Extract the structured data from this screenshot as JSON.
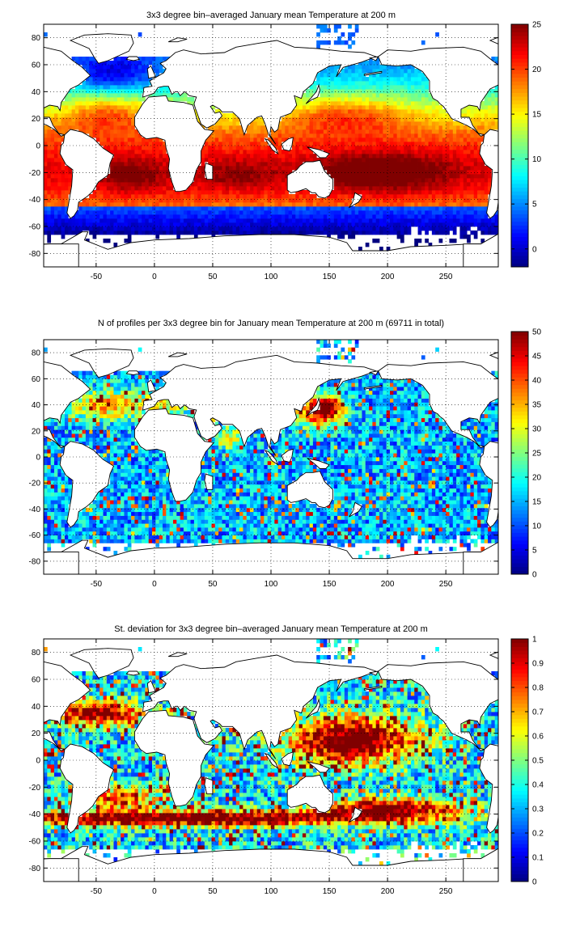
{
  "chart_data": [
    {
      "type": "heatmap",
      "title": "3x3 degree bin–averaged January mean Temperature at 200 m",
      "x_ticks": [
        -50,
        0,
        50,
        100,
        150,
        200,
        250
      ],
      "y_ticks": [
        -80,
        -60,
        -40,
        -20,
        0,
        20,
        40,
        60,
        80
      ],
      "xlim": [
        -95,
        295
      ],
      "ylim": [
        -90,
        90
      ],
      "grid": true,
      "colorbar": {
        "min": -2,
        "max": 25,
        "ticks": [
          0,
          5,
          10,
          15,
          20,
          25
        ],
        "colormap": "jet"
      },
      "field": "temperature"
    },
    {
      "type": "heatmap",
      "title": "N of profiles per 3x3 degree bin for January mean Temperature at 200 m (69711 in total)",
      "x_ticks": [
        -50,
        0,
        50,
        100,
        150,
        200,
        250
      ],
      "y_ticks": [
        -80,
        -60,
        -40,
        -20,
        0,
        20,
        40,
        60,
        80
      ],
      "xlim": [
        -95,
        295
      ],
      "ylim": [
        -90,
        90
      ],
      "grid": true,
      "colorbar": {
        "min": 0,
        "max": 50,
        "ticks": [
          0,
          5,
          10,
          15,
          20,
          25,
          30,
          35,
          40,
          45,
          50
        ],
        "colormap": "jet"
      },
      "field": "count"
    },
    {
      "type": "heatmap",
      "title": "St. deviation for 3x3 degree bin–averaged January mean Temperature at 200 m",
      "x_ticks": [
        -50,
        0,
        50,
        100,
        150,
        200,
        250
      ],
      "y_ticks": [
        -80,
        -60,
        -40,
        -20,
        0,
        20,
        40,
        60,
        80
      ],
      "xlim": [
        -95,
        295
      ],
      "ylim": [
        -90,
        90
      ],
      "grid": true,
      "colorbar": {
        "min": 0,
        "max": 1,
        "ticks": [
          0,
          0.1,
          0.2,
          0.3,
          0.4,
          0.5,
          0.6,
          0.7,
          0.8,
          0.9,
          1
        ],
        "colormap": "jet"
      },
      "field": "stdev"
    }
  ]
}
